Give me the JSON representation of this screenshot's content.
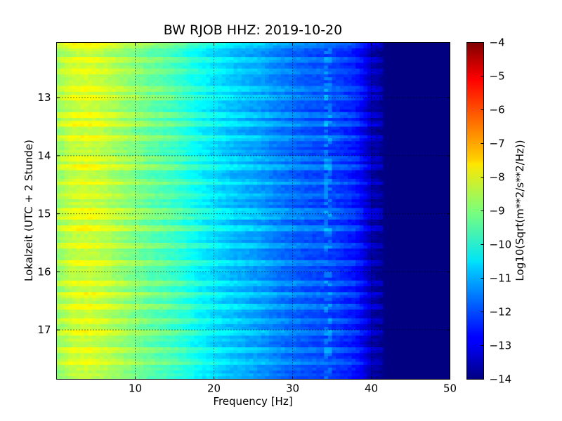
{
  "chart_data": {
    "type": "heatmap",
    "title": "BW RJOB HHZ: 2019-10-20",
    "xlabel": "Frequency [Hz]",
    "ylabel": "Lokalzeit (UTC + 2 Stunde)",
    "xlim": [
      0,
      50
    ],
    "ylim": [
      12.05,
      17.85
    ],
    "y_inverted": true,
    "xticks": [
      10,
      20,
      30,
      40,
      50
    ],
    "yticks": [
      13,
      14,
      15,
      16,
      17
    ],
    "grid": true,
    "colormap": "jet",
    "colorbar": {
      "label": "Log10(Sqrt(m**2/s**2/Hz))",
      "range": [
        -14,
        -4
      ],
      "ticks": [
        -14,
        -13,
        -12,
        -11,
        -10,
        -9,
        -8,
        -7,
        -6,
        -5,
        -4
      ]
    },
    "spectral_profile": {
      "frequency_hz": [
        0,
        2,
        4,
        6,
        8,
        10,
        12,
        14,
        16,
        18,
        20,
        22,
        24,
        26,
        28,
        30,
        32,
        34,
        36,
        38,
        39,
        40,
        42,
        50
      ],
      "log10_amplitude": [
        -8.9,
        -8.4,
        -8.3,
        -8.5,
        -8.8,
        -9.1,
        -9.4,
        -9.6,
        -9.9,
        -10.3,
        -10.6,
        -10.9,
        -11.1,
        -11.3,
        -11.6,
        -11.8,
        -12.0,
        -12.1,
        -12.3,
        -12.6,
        -13.0,
        -13.6,
        -14.0,
        -14.0
      ]
    },
    "broadband_bursts_hours": [
      12.1,
      12.35,
      12.55,
      12.85,
      13.0,
      13.3,
      13.45,
      13.7,
      14.05,
      14.2,
      14.45,
      14.7,
      14.95,
      15.05,
      15.25,
      15.55,
      15.85,
      16.2,
      16.4,
      16.6,
      16.85,
      17.05,
      17.35,
      17.55
    ],
    "narrowband_line_hz": 34.5
  }
}
